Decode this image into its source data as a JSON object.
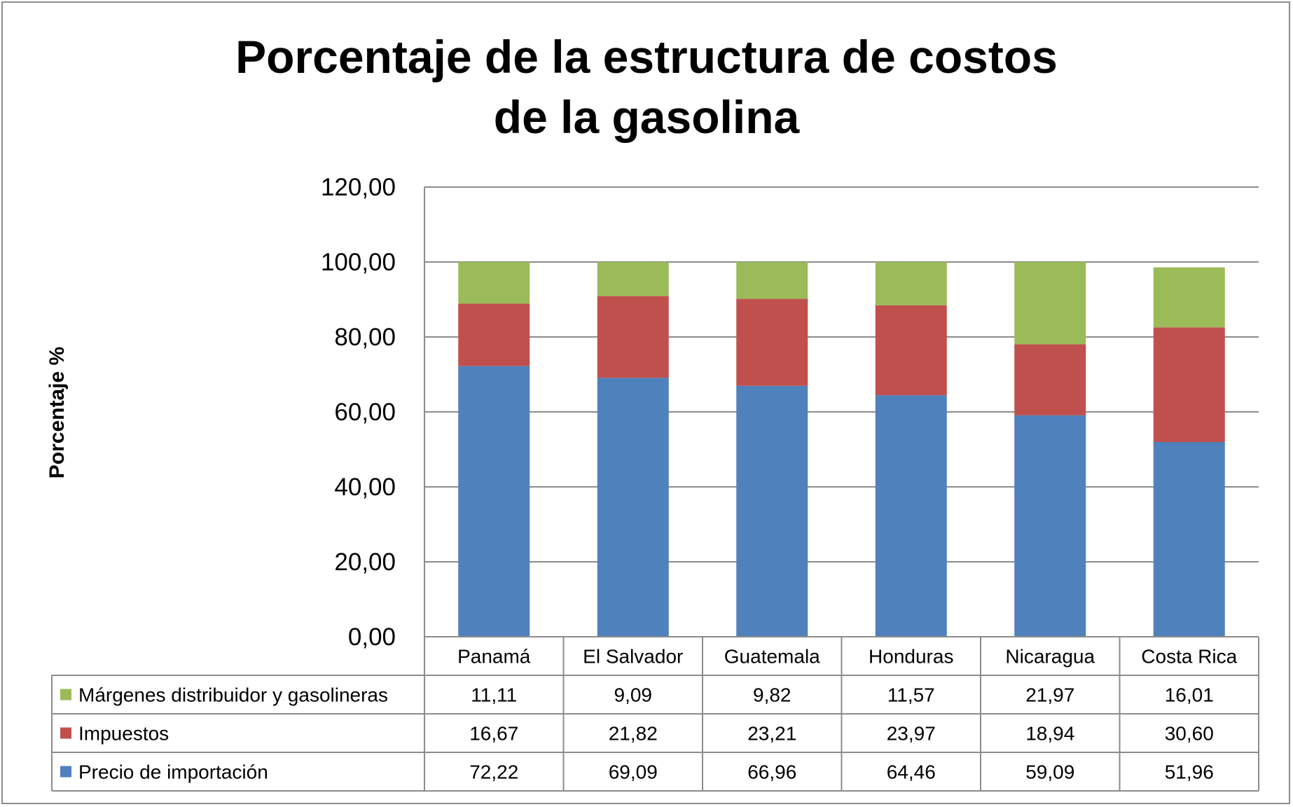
{
  "chart_data": {
    "type": "bar",
    "stacked": true,
    "title_lines": [
      "Porcentaje de la estructura de costos",
      "de la gasolina"
    ],
    "xlabel": "",
    "ylabel": "Porcentaje %",
    "ylim": [
      0,
      120
    ],
    "y_ticks": [
      "0,00",
      "20,00",
      "40,00",
      "60,00",
      "80,00",
      "100,00",
      "120,00"
    ],
    "y_tick_values": [
      0,
      20,
      40,
      60,
      80,
      100,
      120
    ],
    "grid": true,
    "legend": "data-table-left",
    "categories": [
      "Panamá",
      "El Salvador",
      "Guatemala",
      "Honduras",
      "Nicaragua",
      "Costa Rica"
    ],
    "series": [
      {
        "name": "Precio de importación",
        "color": "#4f81bd",
        "values": [
          72.22,
          69.09,
          66.96,
          64.46,
          59.09,
          51.96
        ],
        "labels": [
          "72,22",
          "69,09",
          "66,96",
          "64,46",
          "59,09",
          "51,96"
        ]
      },
      {
        "name": "Impuestos",
        "color": "#c0504d",
        "values": [
          16.67,
          21.82,
          23.21,
          23.97,
          18.94,
          30.6
        ],
        "labels": [
          "16,67",
          "21,82",
          "23,21",
          "23,97",
          "18,94",
          "30,60"
        ]
      },
      {
        "name": "Márgenes distribuidor y gasolineras",
        "color": "#9bbb59",
        "values": [
          11.11,
          9.09,
          9.82,
          11.57,
          21.97,
          16.01
        ],
        "labels": [
          "11,11",
          "9,09",
          "9,82",
          "11,57",
          "21,97",
          "16,01"
        ]
      }
    ],
    "table_row_order": [
      2,
      1,
      0
    ]
  }
}
